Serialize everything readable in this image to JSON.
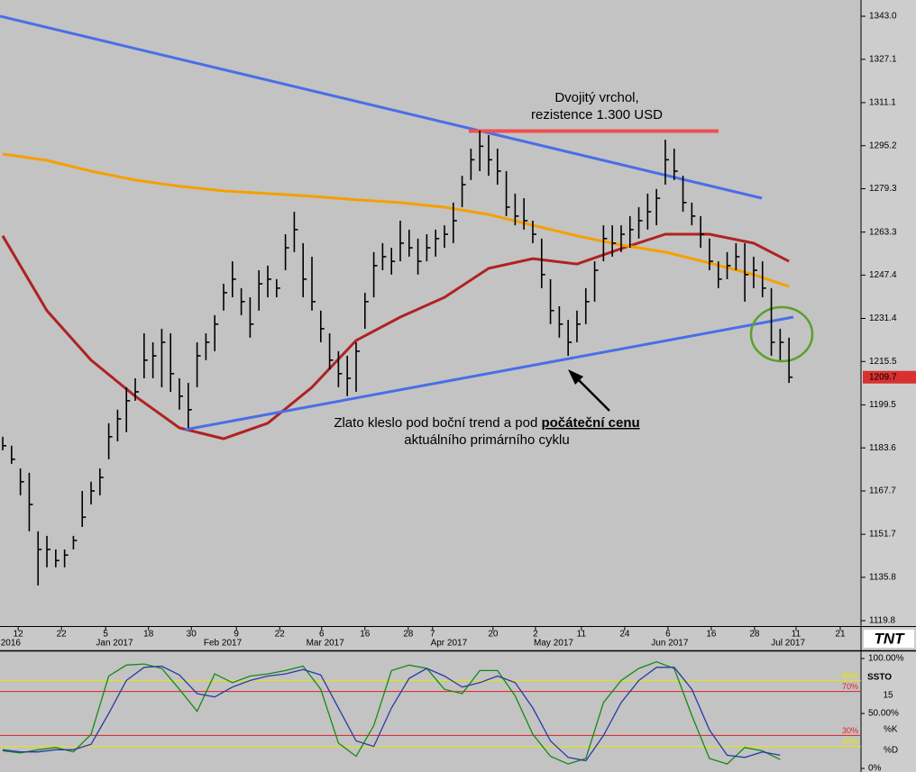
{
  "chart_data": [
    {
      "type": "ohlc",
      "color": "#000000",
      "high": [
        1187.7,
        1184.4,
        1176.0,
        1174.4,
        1152.8,
        1151.1,
        1146.1,
        1146.1,
        1151.1,
        1167.7,
        1171.1,
        1176.0,
        1192.7,
        1197.7,
        1206.0,
        1209.3,
        1225.9,
        1222.6,
        1227.6,
        1225.9,
        1209.3,
        1207.6,
        1222.6,
        1225.9,
        1232.6,
        1244.2,
        1252.5,
        1242.6,
        1239.2,
        1249.2,
        1250.9,
        1245.9,
        1262.5,
        1270.8,
        1259.2,
        1254.2,
        1234.3,
        1225.9,
        1219.3,
        1217.6,
        1222.6,
        1240.9,
        1255.9,
        1259.2,
        1257.5,
        1267.5,
        1264.2,
        1260.9,
        1262.5,
        1264.2,
        1265.8,
        1274.2,
        1284.1,
        1294.1,
        1300.8,
        1299.1,
        1294.1,
        1285.8,
        1277.5,
        1275.8,
        1267.5,
        1260.9,
        1245.9,
        1235.9,
        1230.9,
        1234.3,
        1242.6,
        1252.5,
        1265.8,
        1265.8,
        1265.8,
        1269.2,
        1272.5,
        1277.5,
        1279.2,
        1297.4,
        1294.1,
        1284.1,
        1274.2,
        1269.2,
        1260.9,
        1252.5,
        1255.9,
        1259.2,
        1259.2,
        1254.2,
        1252.5,
        1242.6,
        1227.6,
        1224.3
      ],
      "low": [
        1182.7,
        1177.7,
        1166.1,
        1152.8,
        1132.8,
        1139.5,
        1139.5,
        1139.5,
        1146.1,
        1154.4,
        1162.7,
        1166.1,
        1179.4,
        1186.0,
        1189.4,
        1201.0,
        1209.3,
        1209.3,
        1206.0,
        1204.3,
        1197.7,
        1191.0,
        1206.0,
        1216.0,
        1219.3,
        1234.3,
        1239.2,
        1232.6,
        1224.3,
        1234.3,
        1239.2,
        1239.2,
        1249.2,
        1255.9,
        1239.2,
        1234.3,
        1222.6,
        1212.6,
        1206.0,
        1202.7,
        1204.3,
        1227.6,
        1239.2,
        1249.2,
        1247.6,
        1252.5,
        1254.2,
        1247.6,
        1252.5,
        1254.2,
        1257.5,
        1259.2,
        1272.5,
        1282.5,
        1285.8,
        1284.1,
        1280.8,
        1269.2,
        1265.8,
        1264.2,
        1259.2,
        1242.6,
        1229.3,
        1224.3,
        1217.6,
        1222.6,
        1229.3,
        1237.6,
        1252.5,
        1254.2,
        1255.9,
        1257.5,
        1260.9,
        1264.2,
        1265.8,
        1280.8,
        1282.5,
        1270.8,
        1265.8,
        1257.5,
        1249.2,
        1242.6,
        1245.9,
        1249.2,
        1237.6,
        1242.6,
        1239.2,
        1217.6,
        1216.0,
        1207.6
      ],
      "close": [
        1184.4,
        1179.4,
        1171.1,
        1162.7,
        1146.1,
        1146.1,
        1142.0,
        1144.0,
        1149.4,
        1158.0,
        1167.7,
        1172.7,
        1187.7,
        1194.3,
        1201.0,
        1204.3,
        1216.0,
        1217.6,
        1222.6,
        1211.0,
        1202.7,
        1197.7,
        1217.6,
        1222.6,
        1229.3,
        1240.9,
        1245.9,
        1237.6,
        1229.3,
        1244.2,
        1245.9,
        1242.6,
        1257.5,
        1264.2,
        1245.9,
        1237.6,
        1227.6,
        1216.0,
        1211.0,
        1209.3,
        1219.3,
        1237.6,
        1250.9,
        1254.2,
        1252.5,
        1259.2,
        1257.5,
        1252.5,
        1257.5,
        1260.9,
        1262.5,
        1267.5,
        1280.8,
        1290.0,
        1295.0,
        1290.0,
        1285.8,
        1272.5,
        1269.2,
        1267.5,
        1262.5,
        1247.6,
        1234.3,
        1229.3,
        1222.6,
        1229.3,
        1237.6,
        1249.2,
        1260.9,
        1259.2,
        1262.5,
        1264.2,
        1267.5,
        1270.8,
        1275.8,
        1290.0,
        1285.8,
        1274.2,
        1269.2,
        1262.5,
        1252.5,
        1245.9,
        1250.9,
        1254.2,
        1247.6,
        1249.2,
        1242.6,
        1222.6,
        1222.6,
        1209.7
      ],
      "moving_averages": [
        {
          "color": "#b02222",
          "x": [
            0,
            5,
            10,
            15,
            20,
            25,
            30,
            35,
            40,
            45,
            50,
            55,
            60,
            65,
            70,
            75,
            80,
            85,
            89
          ],
          "values": [
            1261.9,
            1234.3,
            1216.0,
            1202.7,
            1191.0,
            1187.0,
            1192.7,
            1206.0,
            1223.3,
            1231.9,
            1239.2,
            1249.9,
            1253.5,
            1251.5,
            1257.2,
            1262.5,
            1262.5,
            1259.2,
            1252.5
          ]
        },
        {
          "color": "#f5a000",
          "x": [
            0,
            5,
            10,
            15,
            20,
            25,
            30,
            35,
            40,
            45,
            50,
            55,
            60,
            65,
            70,
            75,
            80,
            85,
            89
          ],
          "values": [
            1292.1,
            1289.8,
            1285.8,
            1282.5,
            1280.2,
            1278.5,
            1277.5,
            1276.5,
            1275.2,
            1274.2,
            1272.5,
            1269.8,
            1265.8,
            1261.9,
            1258.5,
            1255.9,
            1251.9,
            1247.6,
            1243.2
          ]
        }
      ],
      "last_price": 1209.7,
      "last_price_color": "#d93030",
      "ylim": [
        1117.8,
        1349.0
      ],
      "yticks": [
        {
          "value": 1343,
          "label": "1343.0"
        },
        1327.1,
        1311.1,
        1295.2,
        1279.3,
        1263.3,
        1247.4,
        1231.4,
        1215.5,
        1199.5,
        1183.6,
        1167.7,
        1151.7,
        1135.8,
        1119.8
      ],
      "xlim": [
        -0.31,
        97.15
      ],
      "xticks": [
        {
          "value": 1.75,
          "label": "12"
        },
        {
          "value": 6.65,
          "label": "22"
        },
        {
          "value": 11.65,
          "label": "5"
        },
        {
          "value": 16.5,
          "label": "18"
        },
        {
          "value": 21.35,
          "label": "30"
        },
        {
          "value": 26.45,
          "label": "9"
        },
        {
          "value": 31.35,
          "label": "22"
        },
        {
          "value": 36.1,
          "label": "6"
        },
        {
          "value": 41,
          "label": "16"
        },
        {
          "value": 45.9,
          "label": "28"
        },
        {
          "value": 48.65,
          "label": "7"
        },
        {
          "value": 55.5,
          "label": "20"
        },
        {
          "value": 60.3,
          "label": "2"
        },
        {
          "value": 65.5,
          "label": "11"
        },
        {
          "value": 70.4,
          "label": "24"
        },
        {
          "value": 75.3,
          "label": "6"
        },
        {
          "value": 80.2,
          "label": "16"
        },
        {
          "value": 85.1,
          "label": "28"
        },
        {
          "value": 89.8,
          "label": "11"
        },
        {
          "value": 94.8,
          "label": "21"
        }
      ],
      "month_labels": [
        {
          "value": 0.9,
          "label": "2016"
        },
        {
          "value": 12.65,
          "label": "Jan 2017"
        },
        {
          "value": 24.9,
          "label": "Feb 2017"
        },
        {
          "value": 36.5,
          "label": "Mar 2017"
        },
        {
          "value": 50.5,
          "label": "Apr 2017"
        },
        {
          "value": 62.35,
          "label": "May 2017"
        },
        {
          "value": 75.5,
          "label": "Jun 2017"
        },
        {
          "value": 88.9,
          "label": "Jul 2017"
        }
      ],
      "annotations": {
        "double_top": [
          "Dvojitý vrchol,",
          "rezistence 1.300 USD"
        ],
        "support_break": {
          "text": "Zlato kleslo pod boční trend a pod ",
          "emphasis": "počáteční cenu",
          "line2": "aktuálního primárního cyklu"
        }
      },
      "logo": "TNT"
    },
    {
      "type": "line",
      "name": "SSTO",
      "period": 15,
      "xlim": [
        -0.31,
        97.15
      ],
      "x": [
        0,
        2,
        4,
        6,
        8,
        10,
        12,
        14,
        16,
        18,
        20,
        22,
        24,
        26,
        28,
        30,
        32,
        34,
        36,
        38,
        40,
        42,
        44,
        46,
        48,
        50,
        52,
        54,
        56,
        58,
        60,
        62,
        64,
        66,
        68,
        70,
        72,
        74,
        76,
        78,
        80,
        82,
        84,
        86,
        88
      ],
      "series": [
        {
          "name": "%K",
          "color": "#138a13",
          "values": [
            16,
            14,
            17,
            19,
            15,
            31,
            84,
            94,
            95,
            91,
            72,
            52,
            86,
            78,
            84,
            86,
            89,
            93,
            72,
            23,
            11,
            39,
            89,
            94,
            91,
            72,
            68,
            89,
            89,
            66,
            31,
            11,
            4,
            9,
            60,
            80,
            91,
            97,
            91,
            48,
            9,
            4,
            19,
            16,
            8
          ]
        },
        {
          "name": "%D",
          "color": "#2a3aa8",
          "values": [
            17,
            15,
            15,
            17,
            17,
            22,
            50,
            80,
            92,
            93,
            85,
            68,
            65,
            74,
            80,
            84,
            86,
            90,
            85,
            55,
            25,
            20,
            55,
            82,
            91,
            84,
            74,
            78,
            84,
            78,
            55,
            25,
            10,
            7,
            30,
            60,
            80,
            92,
            92,
            72,
            35,
            12,
            10,
            15,
            12
          ]
        }
      ],
      "ylim": [
        0,
        100
      ],
      "yticks": [
        {
          "value": 100,
          "label": "100.00%"
        },
        {
          "value": 50,
          "label": "50.00%"
        },
        {
          "value": 0,
          "label": "0%"
        }
      ],
      "levels": [
        {
          "value": 80,
          "label": "80%",
          "color": "#e6e600"
        },
        {
          "value": 70,
          "label": "70%",
          "color": "#e02020"
        },
        {
          "value": 30,
          "label": "30%",
          "color": "#e02020"
        },
        {
          "value": 20,
          "label": "20%",
          "color": "#e6e600"
        }
      ]
    }
  ]
}
